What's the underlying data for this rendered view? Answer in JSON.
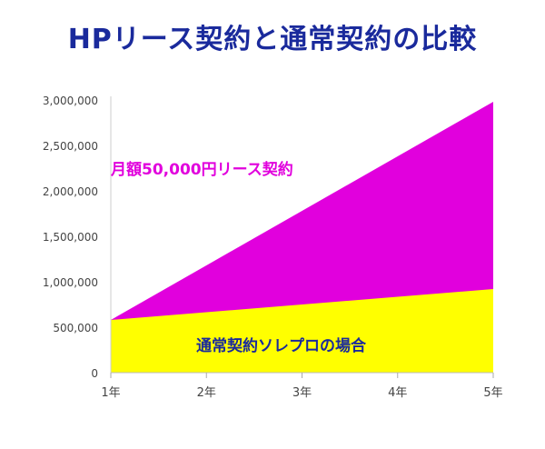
{
  "title": "HPリース契約と通常契約の比較",
  "chart_data": {
    "type": "area",
    "title": "HPリース契約と通常契約の比較",
    "x": [
      "1年",
      "2年",
      "3年",
      "4年",
      "5年"
    ],
    "y_ticks": [
      "0",
      "500,000",
      "1,000,000",
      "1,500,000",
      "2,000,000",
      "2,500,000",
      "3,000,000"
    ],
    "y_tick_values": [
      0,
      500000,
      1000000,
      1500000,
      2000000,
      2500000,
      3000000
    ],
    "ylim": [
      0,
      3000000
    ],
    "grid": false,
    "series": [
      {
        "name": "月額50,000円リース契約",
        "values": [
          580000,
          1180000,
          1780000,
          2380000,
          2980000
        ],
        "color": "#e100dd",
        "label_color": "#e100dd"
      },
      {
        "name": "通常契約ソレプロの場合",
        "values": [
          580000,
          665000,
          750000,
          835000,
          920000
        ],
        "color": "#ffff00",
        "label_color": "#1a2a9c"
      }
    ]
  }
}
